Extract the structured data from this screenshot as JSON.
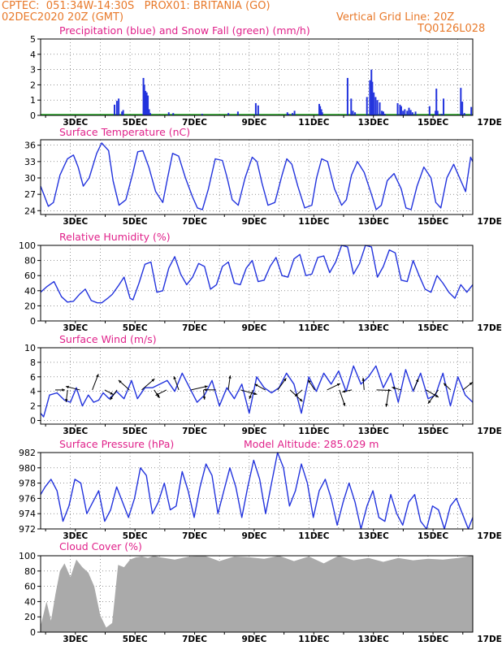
{
  "header": {
    "line1": "CPTEC:  051:34W-14:30S   PROX01: BRITANIA (GO)",
    "line2_left": "02DEC2020 20Z (GMT)",
    "line2_right": "Vertical Grid Line: 20Z",
    "line3_right": "TQ0126L028"
  },
  "date_labels": [
    "3DEC",
    "5DEC",
    "7DEC",
    "9DEC",
    "11DEC",
    "13DEC",
    "15DEC",
    "17DEC"
  ],
  "colors": {
    "title": "#e0218a",
    "header": "#e8792a",
    "line": "#2233dd",
    "snow": "#22aa22",
    "cloud": "#aaaaaa",
    "grid": "#555555"
  },
  "chart_data": [
    {
      "id": "precip",
      "type": "bar",
      "title": "Precipitation (blue) and Snow Fall (green) (mm/h)",
      "ylim": [
        0,
        5
      ],
      "yticks": [
        0,
        1,
        2,
        3,
        4,
        5
      ],
      "x_unit": "days since 02DEC2020 20Z",
      "xlim": [
        0,
        14.5
      ],
      "series": [
        {
          "name": "Precipitation",
          "color": "#2233dd",
          "x": [
            2.48,
            2.56,
            2.62,
            2.73,
            2.77,
            3.45,
            3.48,
            3.52,
            3.56,
            3.6,
            3.64,
            3.68,
            4.3,
            4.45,
            5.42,
            6.3,
            6.62,
            7.22,
            7.3,
            8.28,
            8.32,
            8.45,
            8.52,
            9.35,
            9.38,
            9.42,
            9.45,
            10.3,
            10.42,
            10.48,
            10.55,
            10.95,
            11.05,
            11.1,
            11.13,
            11.18,
            11.24,
            11.3,
            11.38,
            11.45,
            11.5,
            11.55,
            11.98,
            12.06,
            12.1,
            12.16,
            12.22,
            12.3,
            12.36,
            12.42,
            12.48,
            12.58,
            13.05,
            13.25,
            13.28,
            13.32,
            13.45,
            13.52,
            14.1,
            14.15,
            14.22,
            14.45
          ],
          "values": [
            0.7,
            0.95,
            1.1,
            0.25,
            0.35,
            2.45,
            2.0,
            1.6,
            1.5,
            1.3,
            0.4,
            0.15,
            0.2,
            0.15,
            0.1,
            0.15,
            0.25,
            0.8,
            0.65,
            0.2,
            0.1,
            0.15,
            0.3,
            0.75,
            0.6,
            0.4,
            0.2,
            2.45,
            1.1,
            0.3,
            0.2,
            1.2,
            2.3,
            3.0,
            2.2,
            1.5,
            1.2,
            1.0,
            0.85,
            0.3,
            0.25,
            0.1,
            0.8,
            0.7,
            0.6,
            0.3,
            0.4,
            0.3,
            0.5,
            0.35,
            0.2,
            0.25,
            0.6,
            0.3,
            1.75,
            0.3,
            0.1,
            1.1,
            1.8,
            0.9,
            0.15,
            0.55
          ]
        },
        {
          "name": "Snow Fall",
          "color": "#22aa22",
          "x": [
            0,
            14.5
          ],
          "values": [
            0.05,
            0.05
          ]
        }
      ]
    },
    {
      "id": "temp",
      "type": "line",
      "title": "Surface Temperature (nC)",
      "ylim": [
        23.3,
        37.0
      ],
      "yticks": [
        24,
        27,
        30,
        33,
        36
      ],
      "x": [
        0,
        0.12,
        0.26,
        0.43,
        0.65,
        0.9,
        1.1,
        1.26,
        1.43,
        1.63,
        1.88,
        2.05,
        2.28,
        2.43,
        2.63,
        2.86,
        3.1,
        3.26,
        3.43,
        3.63,
        3.86,
        4.1,
        4.26,
        4.43,
        4.63,
        4.86,
        5.1,
        5.26,
        5.43,
        5.63,
        5.86,
        6.1,
        6.26,
        6.43,
        6.63,
        6.86,
        7.1,
        7.26,
        7.43,
        7.63,
        7.86,
        8.1,
        8.26,
        8.43,
        8.63,
        8.86,
        9.1,
        9.26,
        9.43,
        9.63,
        9.86,
        10.1,
        10.26,
        10.43,
        10.63,
        10.86,
        11.1,
        11.26,
        11.43,
        11.63,
        11.86,
        12.1,
        12.26,
        12.43,
        12.63,
        12.86,
        13.1,
        13.26,
        13.43,
        13.63,
        13.86,
        14.1,
        14.26,
        14.43,
        14.5
      ],
      "values": [
        28.5,
        26.8,
        24.8,
        25.5,
        30.5,
        33.5,
        34.2,
        32.0,
        28.5,
        30.0,
        34.5,
        36.4,
        35.0,
        29.5,
        25.0,
        26.0,
        31.0,
        34.8,
        35.0,
        32.0,
        27.5,
        25.5,
        30.0,
        34.5,
        34.0,
        30.0,
        26.5,
        24.5,
        24.2,
        28.0,
        33.5,
        33.2,
        30.0,
        26.0,
        25.0,
        30.0,
        33.8,
        33.0,
        29.0,
        25.0,
        25.5,
        30.5,
        33.5,
        32.5,
        28.5,
        24.5,
        25.0,
        30.0,
        33.5,
        33.0,
        28.0,
        25.0,
        26.0,
        30.5,
        33.0,
        31.0,
        27.0,
        24.2,
        25.0,
        29.5,
        30.8,
        28.0,
        24.5,
        24.2,
        28.5,
        32.0,
        30.0,
        25.5,
        24.5,
        30.0,
        32.5,
        29.5,
        27.5,
        33.8,
        33.0
      ]
    },
    {
      "id": "rh",
      "type": "line",
      "title": "Relative Humidity (%)",
      "ylim": [
        0,
        100
      ],
      "yticks": [
        0,
        20,
        40,
        60,
        80,
        100
      ],
      "x": [
        0,
        0.2,
        0.45,
        0.7,
        0.9,
        1.1,
        1.3,
        1.5,
        1.7,
        1.9,
        2.05,
        2.25,
        2.4,
        2.6,
        2.8,
        3.0,
        3.1,
        3.3,
        3.5,
        3.7,
        3.9,
        4.1,
        4.3,
        4.5,
        4.7,
        4.9,
        5.1,
        5.3,
        5.5,
        5.7,
        5.9,
        6.1,
        6.3,
        6.5,
        6.7,
        6.9,
        7.1,
        7.3,
        7.5,
        7.7,
        7.9,
        8.1,
        8.3,
        8.5,
        8.7,
        8.9,
        9.1,
        9.3,
        9.5,
        9.7,
        9.9,
        10.1,
        10.3,
        10.5,
        10.7,
        10.9,
        11.1,
        11.3,
        11.5,
        11.7,
        11.9,
        12.1,
        12.3,
        12.5,
        12.7,
        12.9,
        13.1,
        13.3,
        13.5,
        13.7,
        13.9,
        14.1,
        14.3,
        14.5
      ],
      "values": [
        38,
        45,
        52,
        32,
        25,
        26,
        35,
        42,
        27,
        24,
        24,
        30,
        35,
        46,
        58,
        30,
        28,
        50,
        75,
        78,
        38,
        40,
        70,
        85,
        62,
        48,
        58,
        76,
        72,
        42,
        48,
        72,
        78,
        50,
        48,
        70,
        80,
        52,
        54,
        72,
        84,
        60,
        58,
        82,
        88,
        60,
        62,
        84,
        86,
        64,
        78,
        100,
        98,
        62,
        76,
        100,
        98,
        58,
        72,
        94,
        90,
        54,
        52,
        80,
        60,
        42,
        38,
        60,
        50,
        38,
        30,
        48,
        38,
        48
      ]
    },
    {
      "id": "wind",
      "type": "line",
      "title": "Surface Wind (m/s)",
      "ylim": [
        -0.5,
        10
      ],
      "yticks": [
        0,
        2,
        4,
        6,
        8,
        10
      ],
      "x": [
        0,
        0.1,
        0.3,
        0.55,
        0.8,
        1.0,
        1.2,
        1.4,
        1.6,
        1.78,
        1.95,
        2.1,
        2.3,
        2.55,
        2.8,
        3.05,
        3.25,
        3.5,
        3.75,
        4.0,
        4.25,
        4.5,
        4.75,
        5.0,
        5.25,
        5.5,
        5.75,
        6.0,
        6.25,
        6.5,
        6.75,
        7.0,
        7.25,
        7.5,
        7.75,
        8.0,
        8.25,
        8.5,
        8.75,
        9.0,
        9.25,
        9.5,
        9.75,
        10.0,
        10.25,
        10.5,
        10.75,
        11.0,
        11.25,
        11.5,
        11.75,
        12.0,
        12.25,
        12.5,
        12.75,
        13.0,
        13.25,
        13.5,
        13.75,
        14.0,
        14.25,
        14.5
      ],
      "values": [
        1.0,
        0.5,
        3.5,
        3.8,
        2.8,
        2.5,
        4.5,
        2.0,
        3.5,
        2.5,
        2.8,
        3.8,
        3.0,
        4.0,
        3.0,
        5.5,
        3.0,
        4.5,
        4.5,
        5.0,
        5.5,
        4.0,
        6.5,
        4.5,
        2.5,
        3.5,
        5.5,
        2.0,
        4.5,
        3.0,
        5.0,
        1.0,
        6.0,
        4.5,
        3.8,
        4.5,
        6.5,
        5.0,
        1.0,
        6.0,
        4.0,
        6.5,
        5.0,
        6.8,
        4.0,
        7.5,
        5.0,
        6.0,
        7.5,
        4.5,
        6.5,
        2.5,
        7.0,
        4.0,
        6.5,
        3.0,
        3.5,
        6.5,
        2.0,
        6.0,
        3.5,
        2.5
      ],
      "vector_arrow_count": 34
    },
    {
      "id": "pres",
      "type": "line",
      "title": "Surface Pressure (hPa)",
      "annotation": "Model Altitude: 285.029  m",
      "ylim": [
        972,
        982
      ],
      "yticks": [
        972,
        974,
        976,
        978,
        980,
        982
      ],
      "x": [
        0,
        0.15,
        0.35,
        0.55,
        0.75,
        0.95,
        1.15,
        1.35,
        1.55,
        1.75,
        1.95,
        2.15,
        2.35,
        2.55,
        2.75,
        2.95,
        3.15,
        3.35,
        3.55,
        3.75,
        3.95,
        4.15,
        4.35,
        4.55,
        4.75,
        4.95,
        5.15,
        5.35,
        5.55,
        5.75,
        5.95,
        6.15,
        6.35,
        6.55,
        6.75,
        6.95,
        7.15,
        7.35,
        7.55,
        7.75,
        7.95,
        8.15,
        8.35,
        8.55,
        8.75,
        8.95,
        9.15,
        9.35,
        9.55,
        9.75,
        9.95,
        10.15,
        10.35,
        10.55,
        10.75,
        10.95,
        11.15,
        11.35,
        11.55,
        11.75,
        11.95,
        12.15,
        12.35,
        12.55,
        12.75,
        12.95,
        13.15,
        13.35,
        13.55,
        13.75,
        13.95,
        14.15,
        14.35,
        14.5
      ],
      "values": [
        976.5,
        977.5,
        978.5,
        977.0,
        973.0,
        975.0,
        978.5,
        978.0,
        974.0,
        975.5,
        977.0,
        973.0,
        974.5,
        977.5,
        975.5,
        973.5,
        976.0,
        980.0,
        979.0,
        974.0,
        975.5,
        978.0,
        974.5,
        975.0,
        979.5,
        977.0,
        973.5,
        977.5,
        980.5,
        979.0,
        974.0,
        977.0,
        980.0,
        977.5,
        973.5,
        977.5,
        981.0,
        978.5,
        974.0,
        978.0,
        982.0,
        980.0,
        975.0,
        977.0,
        980.5,
        978.0,
        973.5,
        977.0,
        978.5,
        976.0,
        972.5,
        975.5,
        978.0,
        975.5,
        972.0,
        975.0,
        977.0,
        973.5,
        973.0,
        976.5,
        974.0,
        972.5,
        975.5,
        976.5,
        973.0,
        972.0,
        975.0,
        974.5,
        972.0,
        975.0,
        976.0,
        974.0,
        972.0,
        973.5
      ]
    },
    {
      "id": "cloud",
      "type": "area",
      "title": "Cloud Cover (%)",
      "ylim": [
        0,
        100
      ],
      "yticks": [
        0,
        20,
        40,
        60,
        80,
        100
      ],
      "x": [
        0,
        0.2,
        0.35,
        0.5,
        0.65,
        0.8,
        1.0,
        1.2,
        1.4,
        1.6,
        1.8,
        2.0,
        2.2,
        2.4,
        2.6,
        2.8,
        3.0,
        3.2,
        3.4,
        3.6,
        3.8,
        4.0,
        4.5,
        5.0,
        5.5,
        6.0,
        6.5,
        7.0,
        7.5,
        8.0,
        8.5,
        9.0,
        9.5,
        10.0,
        10.5,
        11.0,
        11.5,
        12.0,
        12.5,
        13.0,
        13.5,
        14.0,
        14.5
      ],
      "values": [
        8,
        40,
        15,
        50,
        80,
        90,
        72,
        95,
        85,
        78,
        60,
        22,
        6,
        12,
        88,
        85,
        95,
        98,
        99,
        97,
        100,
        98,
        95,
        99,
        100,
        93,
        99,
        98,
        96,
        100,
        93,
        99,
        90,
        100,
        94,
        97,
        92,
        97,
        94,
        96,
        95,
        97,
        100
      ]
    }
  ]
}
